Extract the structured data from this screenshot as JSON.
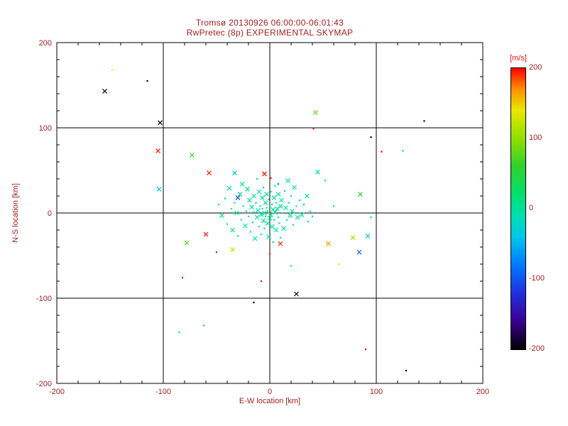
{
  "figure": {
    "text_color": "#a02020",
    "axis_color": "#000000",
    "background": "#ffffff",
    "unit_label_color": "#dd1111"
  },
  "chart_data": {
    "type": "scatter",
    "title": "Tromsø 20130926 06:00:00-06:01:43",
    "subtitle": "RwPretec (8p) EXPERIMENTAL SKYMAP",
    "xlabel": "E-W location [km]",
    "ylabel": "N-S location [km]",
    "xlim": [
      -200,
      200
    ],
    "ylim": [
      -200,
      200
    ],
    "xticks": [
      -200,
      -100,
      0,
      100,
      200
    ],
    "yticks": [
      -200,
      -100,
      0,
      100,
      200
    ],
    "grid": true,
    "legend": "none",
    "colorbar": {
      "label": "[m/s]",
      "min": -200,
      "max": 200,
      "ticks": [
        200,
        100,
        0,
        -100,
        -200
      ],
      "stops": [
        [
          -200,
          "#000000"
        ],
        [
          -160,
          "#3a0090"
        ],
        [
          -120,
          "#2030e0"
        ],
        [
          -80,
          "#0078ff"
        ],
        [
          -40,
          "#00c8e8"
        ],
        [
          -10,
          "#00e0b0"
        ],
        [
          20,
          "#00e070"
        ],
        [
          60,
          "#30d030"
        ],
        [
          100,
          "#90e000"
        ],
        [
          140,
          "#e8e800"
        ],
        [
          170,
          "#ff9000"
        ],
        [
          200,
          "#ff0000"
        ]
      ]
    },
    "points": [
      [
        -155,
        143,
        -200,
        "x"
      ],
      [
        -148,
        168,
        140,
        "d"
      ],
      [
        -115,
        155,
        -200,
        "d"
      ],
      [
        -103,
        106,
        -200,
        "x"
      ],
      [
        -105,
        73,
        195,
        "x"
      ],
      [
        -73,
        68,
        65,
        "x"
      ],
      [
        -104,
        28,
        -45,
        "x"
      ],
      [
        -57,
        47,
        195,
        "x"
      ],
      [
        -33,
        47,
        -45,
        "x"
      ],
      [
        -60,
        -25,
        200,
        "x"
      ],
      [
        -78,
        -35,
        70,
        "x"
      ],
      [
        -50,
        -46,
        -110,
        "d"
      ],
      [
        -35,
        -43,
        120,
        "x"
      ],
      [
        -82,
        -76,
        195,
        "d"
      ],
      [
        -85,
        -140,
        45,
        "d"
      ],
      [
        -62,
        -132,
        50,
        "d"
      ],
      [
        -15,
        -105,
        -200,
        "d"
      ],
      [
        -8,
        -80,
        195,
        "d"
      ],
      [
        25,
        -95,
        -195,
        "x"
      ],
      [
        90,
        -160,
        200,
        "d"
      ],
      [
        128,
        -185,
        -200,
        "d"
      ],
      [
        145,
        108,
        -200,
        "d"
      ],
      [
        43,
        118,
        80,
        "x"
      ],
      [
        41,
        99,
        200,
        "d"
      ],
      [
        95,
        89,
        -200,
        "d"
      ],
      [
        105,
        72,
        200,
        "d"
      ],
      [
        125,
        73,
        35,
        "d"
      ],
      [
        85,
        22,
        55,
        "x"
      ],
      [
        92,
        -27,
        -40,
        "x"
      ],
      [
        78,
        -29,
        110,
        "x"
      ],
      [
        55,
        -36,
        165,
        "x"
      ],
      [
        84,
        -46,
        -90,
        "x"
      ],
      [
        65,
        -60,
        140,
        "d"
      ],
      [
        0,
        -48,
        190,
        "d"
      ],
      [
        10,
        -36,
        190,
        "x"
      ],
      [
        -30,
        18,
        -110,
        "x"
      ],
      [
        -5,
        46,
        200,
        "x"
      ],
      [
        1,
        41,
        195,
        "d"
      ],
      [
        8,
        34,
        -80,
        "d"
      ],
      [
        20,
        -62,
        -10,
        "d"
      ],
      [
        45,
        48,
        0,
        "x"
      ],
      [
        52,
        38,
        5,
        "d"
      ],
      [
        60,
        8,
        -40,
        "d"
      ],
      [
        95,
        -5,
        -45,
        "d"
      ],
      [
        -48,
        10,
        5,
        "d"
      ],
      [
        -45,
        -3,
        0,
        "x"
      ],
      [
        -42,
        17,
        -5,
        "d"
      ],
      [
        -40,
        -13,
        8,
        "d"
      ],
      [
        -38,
        29,
        3,
        "x"
      ],
      [
        -36,
        5,
        -8,
        "d"
      ],
      [
        -35,
        -20,
        12,
        "x"
      ],
      [
        -33,
        12,
        0,
        "d"
      ],
      [
        -31,
        0,
        6,
        "x"
      ],
      [
        -30,
        -27,
        -5,
        "d"
      ],
      [
        -28,
        22,
        15,
        "x"
      ],
      [
        -27,
        -8,
        2,
        "d"
      ],
      [
        -26,
        34,
        8,
        "x"
      ],
      [
        -25,
        8,
        -10,
        "d"
      ],
      [
        -23,
        -15,
        5,
        "x"
      ],
      [
        -22,
        2,
        0,
        "d"
      ],
      [
        -21,
        28,
        18,
        "x"
      ],
      [
        -20,
        -4,
        -3,
        "d"
      ],
      [
        -19,
        15,
        7,
        "x"
      ],
      [
        -18,
        -22,
        2,
        "d"
      ],
      [
        -17,
        7,
        -6,
        "x"
      ],
      [
        -16,
        -11,
        10,
        "d"
      ],
      [
        -15,
        20,
        0,
        "x"
      ],
      [
        -15,
        1,
        4,
        "d"
      ],
      [
        -14,
        -30,
        -8,
        "x"
      ],
      [
        -13,
        12,
        14,
        "d"
      ],
      [
        -12,
        -5,
        2,
        "x"
      ],
      [
        -12,
        40,
        6,
        "d"
      ],
      [
        -11,
        3,
        -4,
        "x"
      ],
      [
        -10,
        -16,
        9,
        "d"
      ],
      [
        -10,
        25,
        0,
        "x"
      ],
      [
        -9,
        8,
        5,
        "d"
      ],
      [
        -8,
        -2,
        -7,
        "x"
      ],
      [
        -8,
        -25,
        3,
        "d"
      ],
      [
        -7,
        18,
        11,
        "x"
      ],
      [
        -7,
        5,
        0,
        "d"
      ],
      [
        -6,
        -9,
        6,
        "x"
      ],
      [
        -6,
        30,
        -3,
        "d"
      ],
      [
        -5,
        0,
        8,
        "x"
      ],
      [
        -5,
        -18,
        1,
        "d"
      ],
      [
        -4,
        12,
        -5,
        "x"
      ],
      [
        -4,
        -4,
        4,
        "d"
      ],
      [
        -3,
        22,
        10,
        "x"
      ],
      [
        -3,
        6,
        0,
        "d"
      ],
      [
        -2,
        -12,
        -8,
        "x"
      ],
      [
        -2,
        2,
        5,
        "d"
      ],
      [
        -1,
        -28,
        2,
        "x"
      ],
      [
        -1,
        16,
        7,
        "d"
      ],
      [
        0,
        -6,
        0,
        "x"
      ],
      [
        0,
        8,
        -5,
        "d"
      ],
      [
        1,
        -2,
        12,
        "x"
      ],
      [
        1,
        25,
        3,
        "d"
      ],
      [
        2,
        -16,
        -2,
        "x"
      ],
      [
        2,
        10,
        6,
        "d"
      ],
      [
        3,
        4,
        0,
        "x"
      ],
      [
        3,
        -34,
        9,
        "d"
      ],
      [
        4,
        18,
        -6,
        "x"
      ],
      [
        4,
        -8,
        3,
        "d"
      ],
      [
        5,
        1,
        15,
        "x"
      ],
      [
        5,
        32,
        0,
        "d"
      ],
      [
        6,
        -20,
        -4,
        "x"
      ],
      [
        6,
        12,
        7,
        "d"
      ],
      [
        7,
        5,
        2,
        "x"
      ],
      [
        8,
        -5,
        -9,
        "d"
      ],
      [
        8,
        22,
        5,
        "x"
      ],
      [
        9,
        -12,
        0,
        "d"
      ],
      [
        10,
        8,
        11,
        "x"
      ],
      [
        10,
        -29,
        -3,
        "d"
      ],
      [
        11,
        15,
        4,
        "x"
      ],
      [
        12,
        0,
        -7,
        "d"
      ],
      [
        13,
        -18,
        8,
        "x"
      ],
      [
        14,
        26,
        0,
        "d"
      ],
      [
        15,
        6,
        -12,
        "x"
      ],
      [
        16,
        -8,
        5,
        "d"
      ],
      [
        17,
        38,
        2,
        "x"
      ],
      [
        18,
        12,
        -5,
        "d"
      ],
      [
        19,
        -3,
        9,
        "x"
      ],
      [
        20,
        20,
        0,
        "d"
      ],
      [
        21,
        2,
        -3,
        "x"
      ],
      [
        22,
        -14,
        6,
        "d"
      ],
      [
        23,
        30,
        12,
        "x"
      ],
      [
        25,
        8,
        -6,
        "d"
      ],
      [
        26,
        -5,
        0,
        "x"
      ],
      [
        28,
        15,
        4,
        "d"
      ],
      [
        30,
        -2,
        -8,
        "x"
      ],
      [
        32,
        10,
        7,
        "d"
      ],
      [
        35,
        20,
        0,
        "x"
      ],
      [
        38,
        2,
        -20,
        "d"
      ],
      [
        36,
        -10,
        -30,
        "d"
      ],
      [
        40,
        -4,
        -35,
        "d"
      ]
    ]
  }
}
